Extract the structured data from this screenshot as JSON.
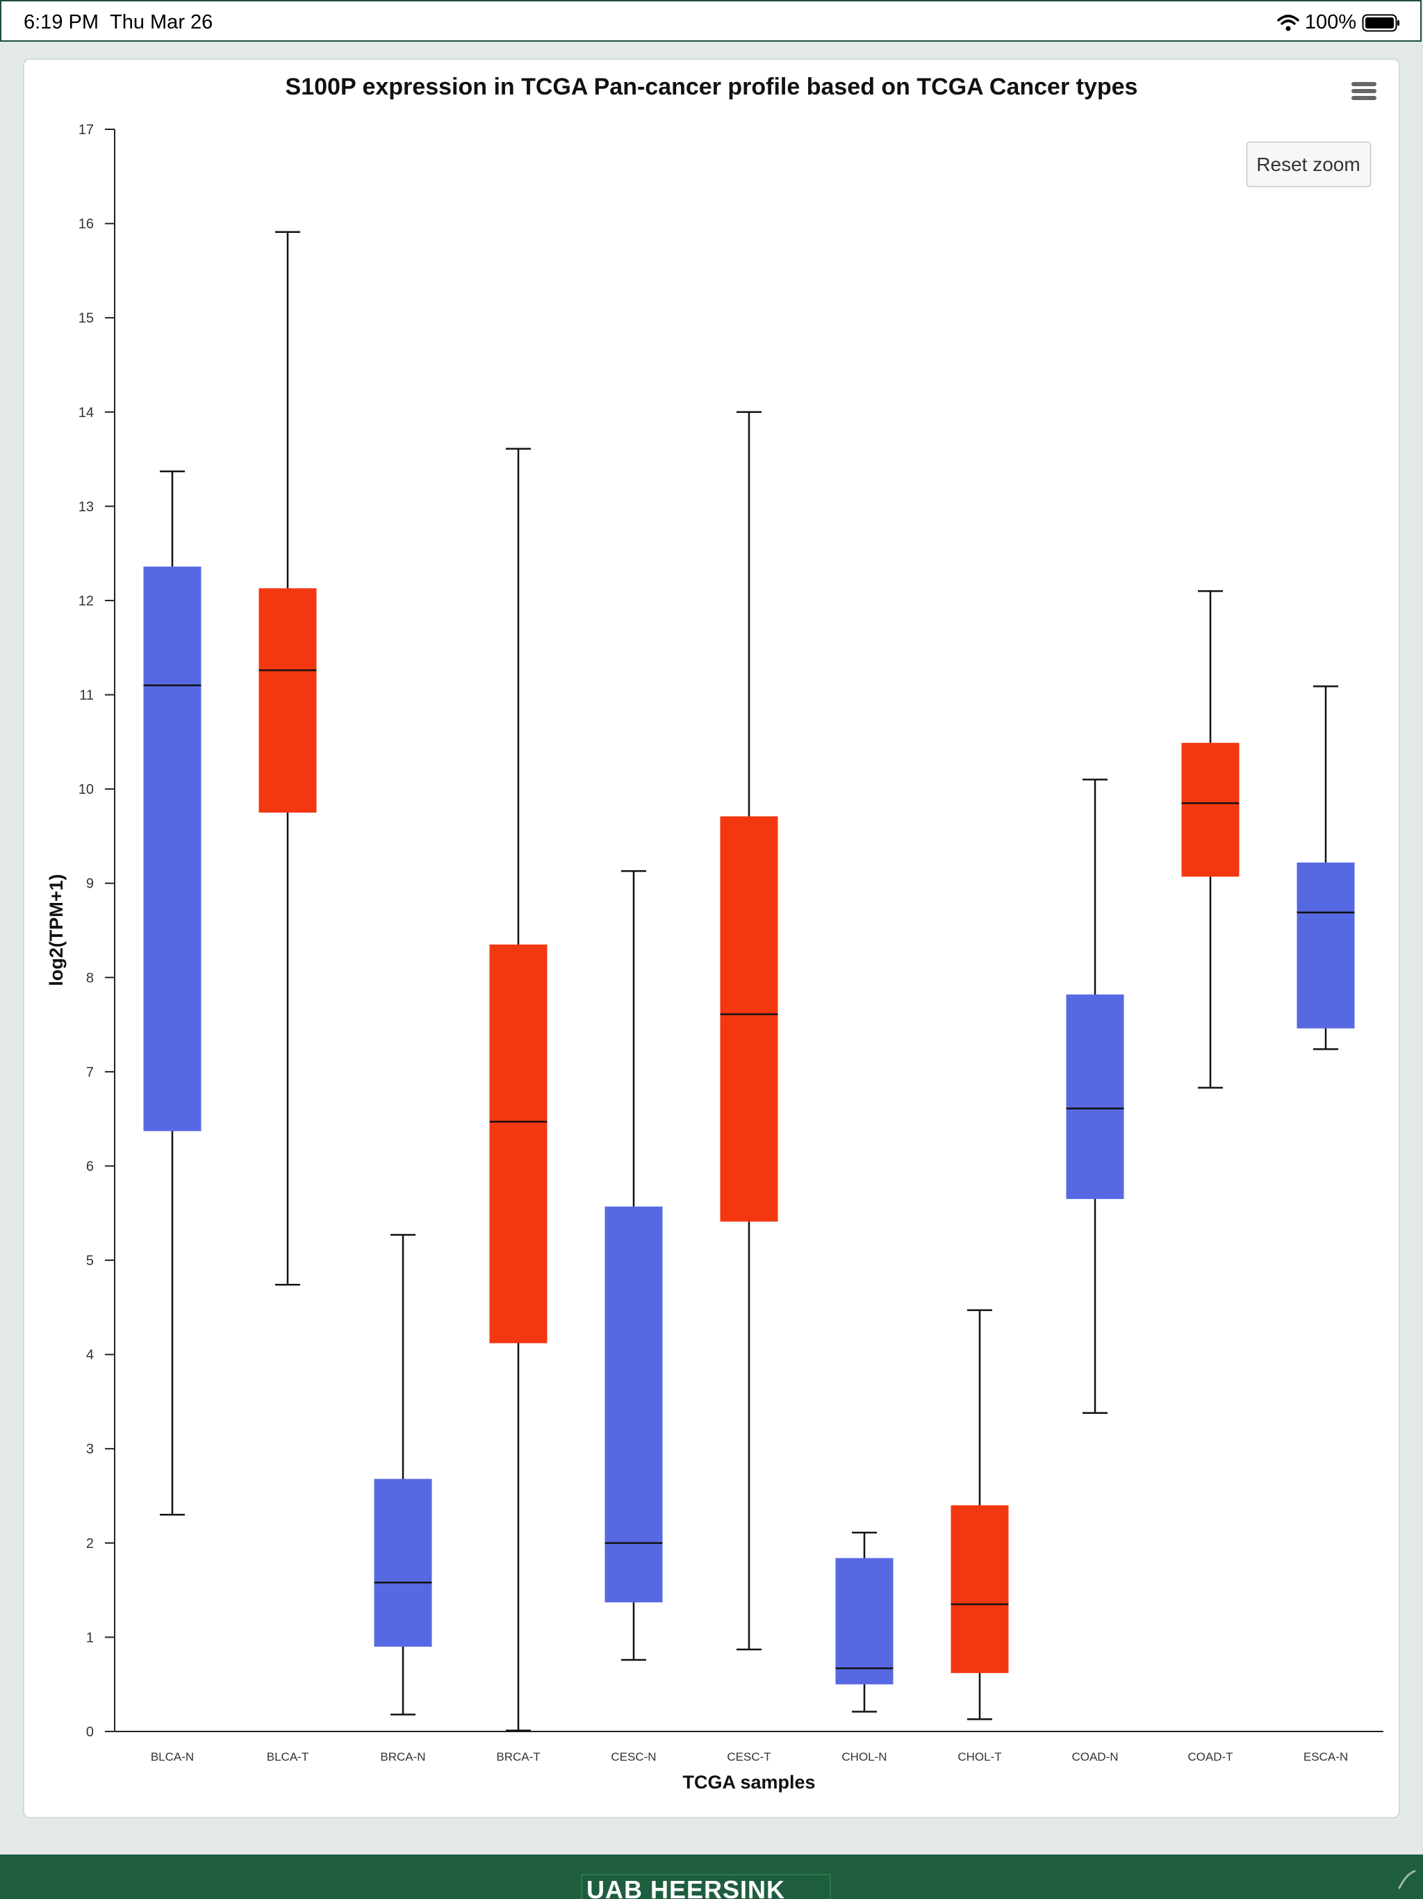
{
  "status_bar": {
    "time": "6:19 PM",
    "date": "Thu Mar 26",
    "battery": "100%"
  },
  "footer": {
    "brand_text": "UAB HEERSINK"
  },
  "colors": {
    "normal": "#5769e2",
    "tumor": "#f23711",
    "footer": "#1e5e3f"
  },
  "reset_zoom_label": "Reset zoom",
  "menu_icon": "hamburger-menu-icon",
  "chart_data": {
    "type": "boxplot",
    "title": "S100P expression in TCGA Pan-cancer profile based on TCGA Cancer types",
    "xlabel": "TCGA samples",
    "ylabel": "log2(TPM+1)",
    "ylim": [
      0,
      17
    ],
    "yticks": [
      0,
      1,
      2,
      3,
      4,
      5,
      6,
      7,
      8,
      9,
      10,
      11,
      12,
      13,
      14,
      15,
      16,
      17
    ],
    "grid": false,
    "categories": [
      "BLCA-N",
      "BLCA-T",
      "BRCA-N",
      "BRCA-T",
      "CESC-N",
      "CESC-T",
      "CHOL-N",
      "CHOL-T",
      "COAD-N",
      "COAD-T",
      "ESCA-N"
    ],
    "series": [
      {
        "type": "N",
        "color": "#5769e2",
        "points": [
          {
            "category": "BLCA-N",
            "min": 2.3,
            "q1": 6.37,
            "median": 11.1,
            "q3": 12.36,
            "max": 13.37
          },
          {
            "category": "BRCA-N",
            "min": 0.18,
            "q1": 0.9,
            "median": 1.58,
            "q3": 2.68,
            "max": 5.27
          },
          {
            "category": "CESC-N",
            "min": 0.76,
            "q1": 1.37,
            "median": 2.0,
            "q3": 5.57,
            "max": 9.13
          },
          {
            "category": "CHOL-N",
            "min": 0.21,
            "q1": 0.5,
            "median": 0.67,
            "q3": 1.84,
            "max": 2.11
          },
          {
            "category": "COAD-N",
            "min": 3.38,
            "q1": 5.65,
            "median": 6.61,
            "q3": 7.82,
            "max": 10.1
          },
          {
            "category": "ESCA-N",
            "min": 7.24,
            "q1": 7.46,
            "median": 8.69,
            "q3": 9.22,
            "max": 11.09
          }
        ]
      },
      {
        "type": "T",
        "color": "#f23711",
        "points": [
          {
            "category": "BLCA-T",
            "min": 4.74,
            "q1": 9.75,
            "median": 11.26,
            "q3": 12.13,
            "max": 15.91
          },
          {
            "category": "BRCA-T",
            "min": 0.01,
            "q1": 4.12,
            "median": 6.47,
            "q3": 8.35,
            "max": 13.61
          },
          {
            "category": "CESC-T",
            "min": 0.87,
            "q1": 5.41,
            "median": 7.61,
            "q3": 9.71,
            "max": 14.0
          },
          {
            "category": "CHOL-T",
            "min": 0.13,
            "q1": 0.62,
            "median": 1.35,
            "q3": 2.4,
            "max": 4.47
          },
          {
            "category": "COAD-T",
            "min": 6.83,
            "q1": 9.07,
            "median": 9.85,
            "q3": 10.49,
            "max": 12.1
          }
        ]
      }
    ]
  }
}
